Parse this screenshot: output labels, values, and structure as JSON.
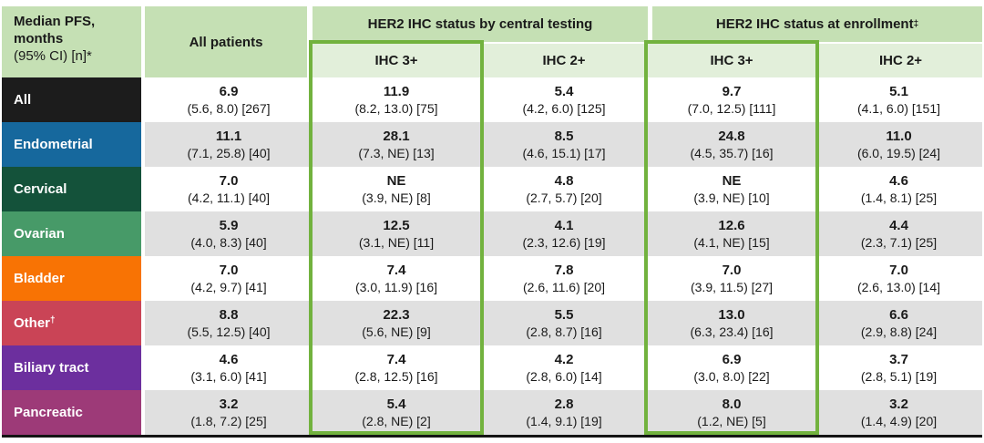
{
  "colors": {
    "header_band_green": "#c5e0b4",
    "subheader_green": "#e2efda",
    "highlight_border_green": "#72b23e",
    "row_alt_gray": "#e0e0e0",
    "bottom_rule_black": "#141414"
  },
  "header": {
    "corner_line1": "Median PFS,",
    "corner_line2": "months",
    "corner_line3": "(95% CI) [n]*",
    "all_patients": "All patients",
    "central_group": "HER2 IHC status by central testing",
    "enrollment_group": "HER2 IHC status at enrollment",
    "enrollment_sup": "‡",
    "subcols": [
      "IHC 3+",
      "IHC 2+",
      "IHC 3+",
      "IHC 2+"
    ]
  },
  "rows": [
    {
      "label": "All",
      "sup": "",
      "color": "#1c1c1c",
      "cells": [
        {
          "v": "6.9",
          "ci": "(5.6, 8.0) [267]"
        },
        {
          "v": "11.9",
          "ci": "(8.2, 13.0) [75]"
        },
        {
          "v": "5.4",
          "ci": "(4.2, 6.0) [125]"
        },
        {
          "v": "9.7",
          "ci": "(7.0, 12.5) [111]"
        },
        {
          "v": "5.1",
          "ci": "(4.1, 6.0) [151]"
        }
      ]
    },
    {
      "label": "Endometrial",
      "sup": "",
      "color": "#16689d",
      "cells": [
        {
          "v": "11.1",
          "ci": "(7.1, 25.8) [40]"
        },
        {
          "v": "28.1",
          "ci": "(7.3, NE) [13]"
        },
        {
          "v": "8.5",
          "ci": "(4.6, 15.1) [17]"
        },
        {
          "v": "24.8",
          "ci": "(4.5, 35.7) [16]"
        },
        {
          "v": "11.0",
          "ci": "(6.0, 19.5) [24]"
        }
      ]
    },
    {
      "label": "Cervical",
      "sup": "",
      "color": "#14523a",
      "cells": [
        {
          "v": "7.0",
          "ci": "(4.2, 11.1) [40]"
        },
        {
          "v": "NE",
          "ci": "(3.9, NE) [8]"
        },
        {
          "v": "4.8",
          "ci": "(2.7, 5.7) [20]"
        },
        {
          "v": "NE",
          "ci": "(3.9, NE) [10]"
        },
        {
          "v": "4.6",
          "ci": "(1.4, 8.1) [25]"
        }
      ]
    },
    {
      "label": "Ovarian",
      "sup": "",
      "color": "#479a68",
      "cells": [
        {
          "v": "5.9",
          "ci": "(4.0, 8.3) [40]"
        },
        {
          "v": "12.5",
          "ci": "(3.1, NE) [11]"
        },
        {
          "v": "4.1",
          "ci": "(2.3, 12.6) [19]"
        },
        {
          "v": "12.6",
          "ci": "(4.1, NE) [15]"
        },
        {
          "v": "4.4",
          "ci": "(2.3, 7.1) [25]"
        }
      ]
    },
    {
      "label": "Bladder",
      "sup": "",
      "color": "#f87304",
      "cells": [
        {
          "v": "7.0",
          "ci": "(4.2, 9.7) [41]"
        },
        {
          "v": "7.4",
          "ci": "(3.0, 11.9) [16]"
        },
        {
          "v": "7.8",
          "ci": "(2.6, 11.6) [20]"
        },
        {
          "v": "7.0",
          "ci": "(3.9, 11.5) [27]"
        },
        {
          "v": "7.0",
          "ci": "(2.6, 13.0) [14]"
        }
      ]
    },
    {
      "label": "Other",
      "sup": "†",
      "color": "#ca4456",
      "cells": [
        {
          "v": "8.8",
          "ci": "(5.5, 12.5) [40]"
        },
        {
          "v": "22.3",
          "ci": "(5.6, NE) [9]"
        },
        {
          "v": "5.5",
          "ci": "(2.8, 8.7) [16]"
        },
        {
          "v": "13.0",
          "ci": "(6.3, 23.4) [16]"
        },
        {
          "v": "6.6",
          "ci": "(2.9, 8.8) [24]"
        }
      ]
    },
    {
      "label": "Biliary tract",
      "sup": "",
      "color": "#6c2f9e",
      "cells": [
        {
          "v": "4.6",
          "ci": "(3.1, 6.0) [41]"
        },
        {
          "v": "7.4",
          "ci": "(2.8, 12.5) [16]"
        },
        {
          "v": "4.2",
          "ci": "(2.8, 6.0) [14]"
        },
        {
          "v": "6.9",
          "ci": "(3.0, 8.0) [22]"
        },
        {
          "v": "3.7",
          "ci": "(2.8, 5.1) [19]"
        }
      ]
    },
    {
      "label": "Pancreatic",
      "sup": "",
      "color": "#9d3a78",
      "cells": [
        {
          "v": "3.2",
          "ci": "(1.8, 7.2) [25]"
        },
        {
          "v": "5.4",
          "ci": "(2.8, NE) [2]"
        },
        {
          "v": "2.8",
          "ci": "(1.4, 9.1) [19]"
        },
        {
          "v": "8.0",
          "ci": "(1.2, NE) [5]"
        },
        {
          "v": "3.2",
          "ci": "(1.4, 4.9) [20]"
        }
      ]
    }
  ],
  "chart_data": {
    "type": "table",
    "title": "Median PFS, months (95% CI) [n]",
    "column_groups": [
      "All patients",
      "HER2 IHC status by central testing",
      "HER2 IHC status at enrollment"
    ],
    "columns": [
      "All patients",
      "Central IHC 3+",
      "Central IHC 2+",
      "Enrollment IHC 3+",
      "Enrollment IHC 2+"
    ],
    "highlighted_columns": [
      "Central IHC 3+",
      "Enrollment IHC 3+"
    ],
    "rows": [
      {
        "cohort": "All",
        "median": [
          6.9,
          11.9,
          5.4,
          9.7,
          5.1
        ],
        "ci_low": [
          5.6,
          8.2,
          4.2,
          7.0,
          4.1
        ],
        "ci_high": [
          8.0,
          13.0,
          6.0,
          12.5,
          6.0
        ],
        "n": [
          267,
          75,
          125,
          111,
          151
        ]
      },
      {
        "cohort": "Endometrial",
        "median": [
          11.1,
          28.1,
          8.5,
          24.8,
          11.0
        ],
        "ci_low": [
          7.1,
          7.3,
          4.6,
          4.5,
          6.0
        ],
        "ci_high": [
          25.8,
          "NE",
          15.1,
          35.7,
          19.5
        ],
        "n": [
          40,
          13,
          17,
          16,
          24
        ]
      },
      {
        "cohort": "Cervical",
        "median": [
          7.0,
          "NE",
          4.8,
          "NE",
          4.6
        ],
        "ci_low": [
          4.2,
          3.9,
          2.7,
          3.9,
          1.4
        ],
        "ci_high": [
          11.1,
          "NE",
          5.7,
          "NE",
          8.1
        ],
        "n": [
          40,
          8,
          20,
          10,
          25
        ]
      },
      {
        "cohort": "Ovarian",
        "median": [
          5.9,
          12.5,
          4.1,
          12.6,
          4.4
        ],
        "ci_low": [
          4.0,
          3.1,
          2.3,
          4.1,
          2.3
        ],
        "ci_high": [
          8.3,
          "NE",
          12.6,
          "NE",
          7.1
        ],
        "n": [
          40,
          11,
          19,
          15,
          25
        ]
      },
      {
        "cohort": "Bladder",
        "median": [
          7.0,
          7.4,
          7.8,
          7.0,
          7.0
        ],
        "ci_low": [
          4.2,
          3.0,
          2.6,
          3.9,
          2.6
        ],
        "ci_high": [
          9.7,
          11.9,
          11.6,
          11.5,
          13.0
        ],
        "n": [
          41,
          16,
          20,
          27,
          14
        ]
      },
      {
        "cohort": "Other",
        "median": [
          8.8,
          22.3,
          5.5,
          13.0,
          6.6
        ],
        "ci_low": [
          5.5,
          5.6,
          2.8,
          6.3,
          2.9
        ],
        "ci_high": [
          12.5,
          "NE",
          8.7,
          23.4,
          8.8
        ],
        "n": [
          40,
          9,
          16,
          16,
          24
        ]
      },
      {
        "cohort": "Biliary tract",
        "median": [
          4.6,
          7.4,
          4.2,
          6.9,
          3.7
        ],
        "ci_low": [
          3.1,
          2.8,
          2.8,
          3.0,
          2.8
        ],
        "ci_high": [
          6.0,
          12.5,
          6.0,
          8.0,
          5.1
        ],
        "n": [
          41,
          16,
          14,
          22,
          19
        ]
      },
      {
        "cohort": "Pancreatic",
        "median": [
          3.2,
          5.4,
          2.8,
          8.0,
          3.2
        ],
        "ci_low": [
          1.8,
          2.8,
          1.4,
          1.2,
          1.4
        ],
        "ci_high": [
          7.2,
          "NE",
          9.1,
          "NE",
          4.9
        ],
        "n": [
          25,
          2,
          19,
          5,
          20
        ]
      }
    ]
  }
}
